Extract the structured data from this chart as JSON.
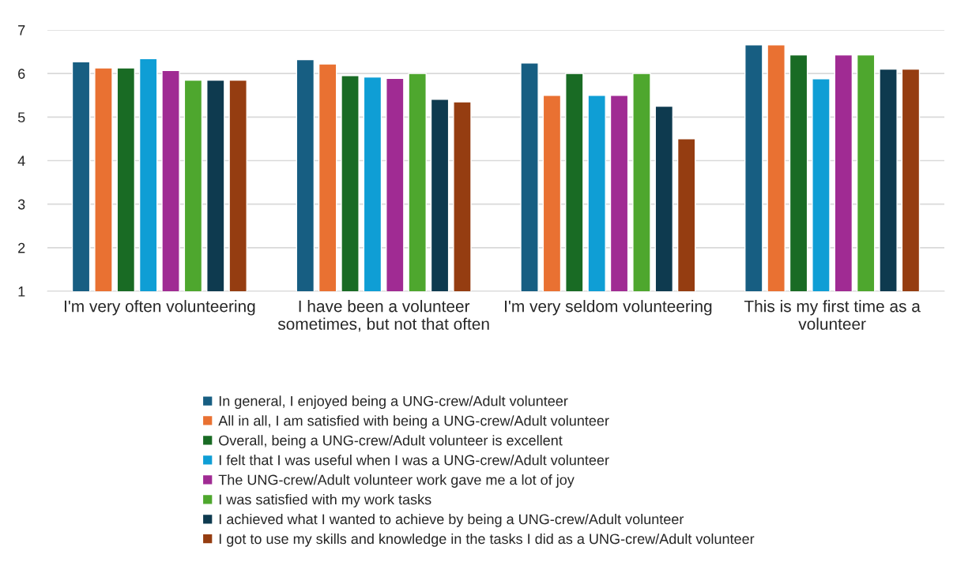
{
  "chart_data": {
    "type": "bar",
    "categories": [
      "I'm very often volunteering",
      "I have been a volunteer sometimes, but not that often",
      "I'm very seldom volunteering",
      "This is my first time as a volunteer"
    ],
    "series": [
      {
        "name": "In general, I enjoyed being a UNG-crew/Adult volunteer",
        "color": "#175e82",
        "values": [
          6.27,
          6.32,
          6.24,
          6.66
        ]
      },
      {
        "name": "All in all, I am satisfied with being a UNG-crew/Adult volunteer",
        "color": "#e97132",
        "values": [
          6.13,
          6.22,
          5.5,
          6.66
        ]
      },
      {
        "name": "Overall, being a UNG-crew/Adult volunteer is excellent",
        "color": "#196b24",
        "values": [
          6.13,
          5.95,
          6.0,
          6.43
        ]
      },
      {
        "name": "I felt that I was useful when I was a UNG-crew/Adult volunteer",
        "color": "#0f9ed5",
        "values": [
          6.34,
          5.92,
          5.5,
          5.88
        ]
      },
      {
        "name": "The UNG-crew/Adult volunteer work gave me a lot of joy",
        "color": "#a02b93",
        "values": [
          6.07,
          5.89,
          5.5,
          6.43
        ]
      },
      {
        "name": "I was satisfied with my work tasks",
        "color": "#4ea72e",
        "values": [
          5.85,
          6.0,
          6.0,
          6.43
        ]
      },
      {
        "name": "I achieved what I wanted to achieve by being a UNG-crew/Adult volunteer",
        "color": "#0e3a4f",
        "values": [
          5.85,
          5.41,
          5.25,
          6.1
        ]
      },
      {
        "name": "I got to use my skills and knowledge in the tasks I did as a UNG-crew/Adult volunteer",
        "color": "#953d11",
        "values": [
          5.85,
          5.35,
          4.5,
          6.1
        ]
      }
    ],
    "ylim": [
      1,
      7
    ],
    "yticks": [
      1,
      2,
      3,
      4,
      5,
      6,
      7
    ],
    "grid": "y",
    "legend": "bottom"
  }
}
